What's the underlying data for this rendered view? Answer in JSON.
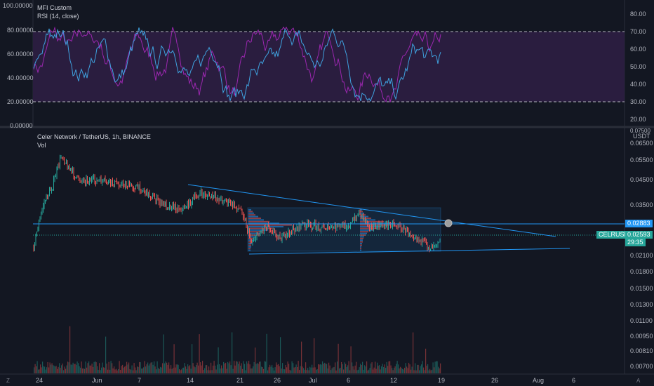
{
  "oscillator": {
    "title": "MFI Custom",
    "subtitle": "RSI (14, close)",
    "left_ticks": [
      "100.00000",
      "80.00000",
      "60.00000",
      "40.00000",
      "20.00000",
      "0.00000"
    ],
    "left_values": [
      100,
      80,
      60,
      40,
      20,
      0
    ],
    "right_ticks": [
      "80.00",
      "70.00",
      "60.00",
      "50.00",
      "40.00",
      "30.00",
      "20.00"
    ],
    "right_values": [
      80,
      70,
      60,
      50,
      40,
      30,
      20
    ],
    "band_upper": 80,
    "band_lower": 20,
    "colors": {
      "mfi": "#9c27b0",
      "rsi": "#3fa3e0",
      "band": "#2a1d3f"
    }
  },
  "price": {
    "title": "Celer Network / TetherUS, 1h, BINANCE",
    "volume_label": "Vol",
    "currency": "USDT",
    "axis_ticks": [
      "0.07500",
      "0.06500",
      "0.05500",
      "0.04500",
      "0.03500",
      "0.02100",
      "0.01800",
      "0.01500",
      "0.01300",
      "0.01100",
      "0.00950",
      "0.00810",
      "0.00700"
    ],
    "axis_values": [
      0.075,
      0.065,
      0.055,
      0.045,
      0.035,
      0.021,
      0.018,
      0.015,
      0.013,
      0.011,
      0.0095,
      0.0081,
      0.007
    ],
    "horizontal_level": "0.02883",
    "symbol_tag": "CELRUSDT",
    "last_price": "0.02593",
    "countdown": "29:35",
    "colors": {
      "up": "#26a69a",
      "down": "#ef5350",
      "trend": "#2196f3",
      "tag": "#26a69a",
      "level_tag": "#2196f3"
    }
  },
  "time_axis": {
    "labels": [
      "24",
      "Jun",
      "7",
      "14",
      "21",
      "26",
      "Jul",
      "6",
      "12",
      "19",
      "26",
      "Aug",
      "6"
    ]
  },
  "corner_buttons": {
    "left": "Z",
    "right": "A"
  }
}
